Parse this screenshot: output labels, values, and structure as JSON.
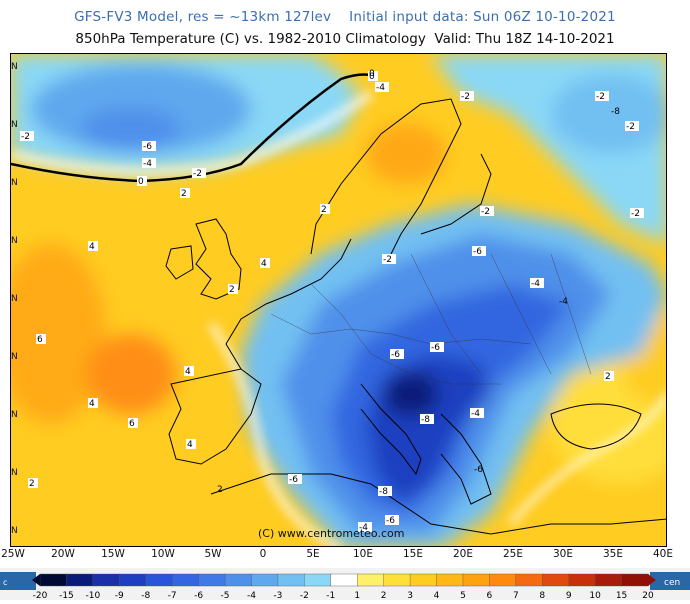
{
  "header": {
    "line1": "GFS-FV3 Model, res = ~13km 127lev    Initial input data: Sun 06Z 10-10-2021",
    "line2": "850hPa Temperature (C) vs. 1982-2010 Climatology  Valid: Thu 18Z 14-10-2021"
  },
  "map": {
    "longitude_labels": [
      "25W",
      "20W",
      "15W",
      "10W",
      "5W",
      "0",
      "5E",
      "10E",
      "15E",
      "20E",
      "25E",
      "30E",
      "35E",
      "40E"
    ],
    "latitude_marks": [
      "N",
      "N",
      "N",
      "N",
      "N",
      "N",
      "N",
      "N",
      "N"
    ],
    "contour_labels": [
      "-2",
      "-6",
      "-4",
      "-2",
      "0",
      "2",
      "0",
      "-4",
      "-2",
      "-2",
      "-2",
      "-2",
      "-2",
      "4",
      "2",
      "2",
      "4",
      "4",
      "6",
      "4",
      "6",
      "2",
      "4",
      "2",
      "-2",
      "-4",
      "-6",
      "-4",
      "-6",
      "-6",
      "-8",
      "-8",
      "-6",
      "-4",
      "-6",
      "-8",
      "-6",
      "-4",
      "2",
      "0"
    ],
    "copyright": "(C) www.centrometeo.com"
  },
  "legend": {
    "ticks": [
      "-20",
      "-15",
      "-10",
      "-9",
      "-8",
      "-7",
      "-6",
      "-5",
      "-4",
      "-3",
      "-2",
      "-1",
      "1",
      "2",
      "3",
      "4",
      "5",
      "6",
      "7",
      "8",
      "9",
      "10",
      "15",
      "20"
    ],
    "colors": [
      "#000a32",
      "#0a1c78",
      "#1a2fa8",
      "#1f3fc0",
      "#2a55d8",
      "#3366e0",
      "#3f7ae6",
      "#4f90ea",
      "#5fa8ee",
      "#72c0f2",
      "#8ad8f6",
      "#ffffff",
      "#fff06a",
      "#ffdf3a",
      "#ffcc20",
      "#ffb816",
      "#ffa212",
      "#ff8a10",
      "#f56a10",
      "#e04a0e",
      "#c8300c",
      "#a81a0a",
      "#901006"
    ],
    "logo_left": "c",
    "logo_right": "cen"
  }
}
